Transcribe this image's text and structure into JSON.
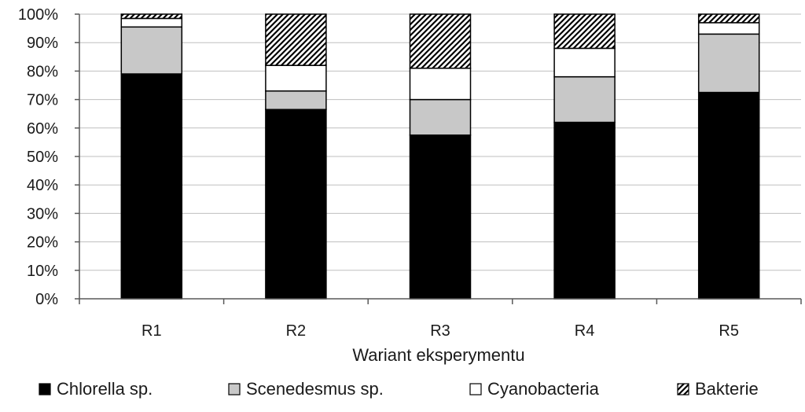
{
  "chart_data": {
    "type": "bar",
    "stacked": true,
    "percent": true,
    "categories": [
      "R1",
      "R2",
      "R3",
      "R4",
      "R5"
    ],
    "series": [
      {
        "name": "Chlorella sp.",
        "fill": "black",
        "color": "#000000",
        "values": [
          79,
          66.5,
          57.5,
          62,
          72.5
        ]
      },
      {
        "name": "Scenedesmus sp.",
        "fill": "gray",
        "color": "#c8c8c8",
        "values": [
          16.5,
          6.5,
          12.5,
          16,
          20.5
        ]
      },
      {
        "name": "Cyanobacteria",
        "fill": "white",
        "color": "#ffffff",
        "values": [
          3,
          9,
          11,
          10,
          4
        ]
      },
      {
        "name": "Bakterie",
        "fill": "hatch",
        "color": "#000000",
        "values": [
          1.5,
          18,
          19,
          12,
          3
        ]
      }
    ],
    "xlabel": "Wariant eksperymentu",
    "ylabel": "",
    "ylim": [
      0,
      100
    ],
    "yticks": [
      "0%",
      "10%",
      "20%",
      "30%",
      "40%",
      "50%",
      "60%",
      "70%",
      "80%",
      "90%",
      "100%"
    ],
    "grid": "horizontal",
    "legend_position": "bottom"
  }
}
